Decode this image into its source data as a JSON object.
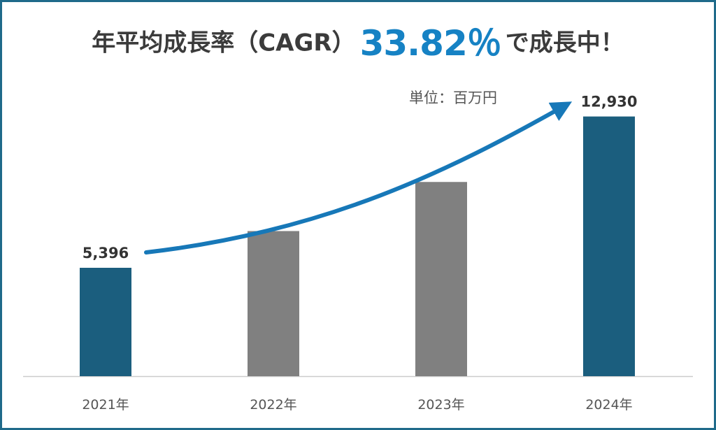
{
  "title": {
    "prefix": "年平均成長率（CAGR）",
    "highlight": "33.82％",
    "suffix": "で成長中！"
  },
  "unit": "単位：百万円",
  "colors": {
    "highlight_bar": "#1b5e7e",
    "regular_bar": "#808080",
    "arrow": "#1778b8",
    "title_accent": "#1682c4",
    "border": "#1f6a8a",
    "baseline": "#cccccc"
  },
  "chart_data": {
    "type": "bar",
    "categories": [
      "2021年",
      "2022年",
      "2023年",
      "2024年"
    ],
    "values": [
      5396,
      7225,
      9670,
      12930
    ],
    "data_labels": [
      "5,396",
      "",
      "",
      "12,930"
    ],
    "highlighted": [
      true,
      false,
      false,
      true
    ],
    "ylim": [
      0,
      14100
    ],
    "grid": false,
    "annotations": [
      {
        "type": "arrow",
        "from_category": "2021年",
        "to_category": "2024年"
      }
    ]
  }
}
